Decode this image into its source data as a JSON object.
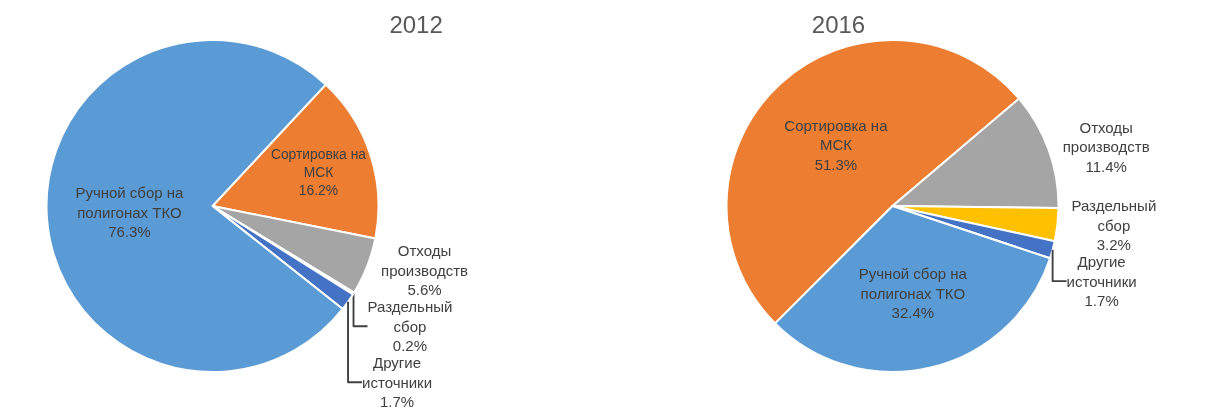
{
  "chart_data": [
    {
      "type": "pie",
      "title": "2012",
      "categories": [
        "Сортировка на МСК",
        "Отходы производств",
        "Раздельный сбор",
        "Другие источники",
        "Ручной сбор на полигонах ТКО"
      ],
      "values": [
        16.2,
        5.6,
        0.2,
        1.7,
        76.3
      ],
      "value_labels": [
        "16.2%",
        "5.6%",
        "0.2%",
        "1.7%",
        "76.3%"
      ],
      "colors": [
        "#ed7d31",
        "#a5a5a5",
        "#ffc000",
        "#4472c4",
        "#5b9bd5"
      ],
      "legend": false
    },
    {
      "type": "pie",
      "title": "2016",
      "categories": [
        "Сортировка на МСК",
        "Отходы производств",
        "Раздельный сбор",
        "Другие источники",
        "Ручной сбор на полигонах ТКО"
      ],
      "values": [
        51.3,
        11.4,
        3.2,
        1.7,
        32.4
      ],
      "value_labels": [
        "51.3%",
        "11.4%",
        "3.2%",
        "1.7%",
        "32.4%"
      ],
      "colors": [
        "#ed7d31",
        "#a5a5a5",
        "#ffc000",
        "#4472c4",
        "#5b9bd5"
      ],
      "legend": false
    }
  ]
}
